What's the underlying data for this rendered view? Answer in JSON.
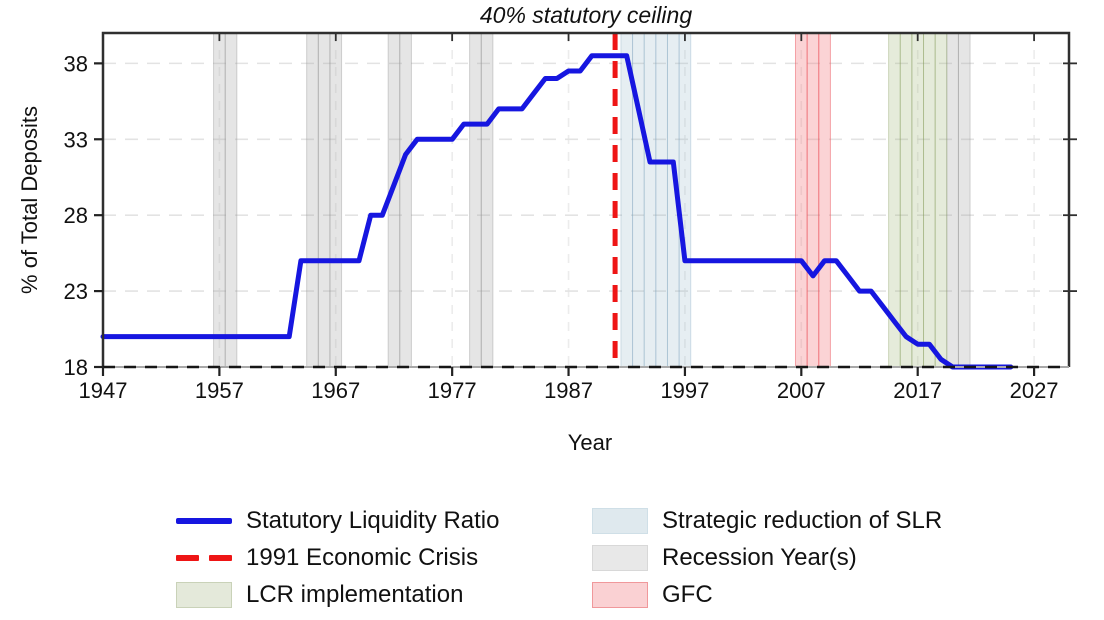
{
  "chart_data": {
    "type": "line",
    "title": "40% statutory ceiling",
    "xlabel": "Year",
    "ylabel": "% of Total Deposits",
    "xlim": [
      1947,
      2030
    ],
    "ylim": [
      18,
      40
    ],
    "x_ticks": [
      1947,
      1957,
      1967,
      1977,
      1987,
      1997,
      2007,
      2017,
      2027
    ],
    "y_ticks": [
      18,
      23,
      28,
      33,
      38
    ],
    "grid": true,
    "series": [
      {
        "name": "Statutory Liquidity Ratio",
        "color": "#1616e0",
        "points": [
          [
            1947,
            20
          ],
          [
            1948,
            20
          ],
          [
            1949,
            20
          ],
          [
            1950,
            20
          ],
          [
            1951,
            20
          ],
          [
            1952,
            20
          ],
          [
            1953,
            20
          ],
          [
            1954,
            20
          ],
          [
            1955,
            20
          ],
          [
            1956,
            20
          ],
          [
            1957,
            20
          ],
          [
            1958,
            20
          ],
          [
            1959,
            20
          ],
          [
            1960,
            20
          ],
          [
            1961,
            20
          ],
          [
            1962,
            20
          ],
          [
            1963,
            20
          ],
          [
            1964,
            25
          ],
          [
            1965,
            25
          ],
          [
            1966,
            25
          ],
          [
            1967,
            25
          ],
          [
            1968,
            25
          ],
          [
            1969,
            25
          ],
          [
            1970,
            28
          ],
          [
            1971,
            28
          ],
          [
            1972,
            30
          ],
          [
            1973,
            32
          ],
          [
            1974,
            33
          ],
          [
            1975,
            33
          ],
          [
            1976,
            33
          ],
          [
            1977,
            33
          ],
          [
            1978,
            34
          ],
          [
            1979,
            34
          ],
          [
            1980,
            34
          ],
          [
            1981,
            35
          ],
          [
            1982,
            35
          ],
          [
            1983,
            35
          ],
          [
            1984,
            36
          ],
          [
            1985,
            37
          ],
          [
            1986,
            37
          ],
          [
            1987,
            37.5
          ],
          [
            1988,
            37.5
          ],
          [
            1989,
            38.5
          ],
          [
            1990,
            38.5
          ],
          [
            1991,
            38.5
          ],
          [
            1992,
            38.5
          ],
          [
            1993,
            35
          ],
          [
            1994,
            31.5
          ],
          [
            1995,
            31.5
          ],
          [
            1996,
            31.5
          ],
          [
            1997,
            25
          ],
          [
            1998,
            25
          ],
          [
            1999,
            25
          ],
          [
            2000,
            25
          ],
          [
            2001,
            25
          ],
          [
            2002,
            25
          ],
          [
            2003,
            25
          ],
          [
            2004,
            25
          ],
          [
            2005,
            25
          ],
          [
            2006,
            25
          ],
          [
            2007,
            25
          ],
          [
            2008,
            24
          ],
          [
            2009,
            25
          ],
          [
            2010,
            25
          ],
          [
            2011,
            24
          ],
          [
            2012,
            23
          ],
          [
            2013,
            23
          ],
          [
            2014,
            22
          ],
          [
            2015,
            21
          ],
          [
            2016,
            20
          ],
          [
            2017,
            19.5
          ],
          [
            2018,
            19.5
          ],
          [
            2019,
            18.5
          ],
          [
            2020,
            18
          ],
          [
            2021,
            18
          ],
          [
            2022,
            18
          ],
          [
            2023,
            18
          ],
          [
            2024,
            18
          ],
          [
            2025,
            18
          ]
        ]
      }
    ],
    "reference_line": {
      "x": 1991,
      "label": "1991 Economic Crisis",
      "color": "#ee1515",
      "style": "dashed"
    },
    "bands": [
      {
        "name": "Strategic reduction of SLR",
        "years": [
          1992,
          1993,
          1994,
          1995,
          1996,
          1997
        ],
        "fill": "rgba(141,178,198,0.22)",
        "edge": "rgba(120,160,185,0.30)"
      },
      {
        "name": "Recession Year(s)",
        "years": [
          1957,
          1958,
          1965,
          1966,
          1967,
          1972,
          1973,
          1979,
          1980,
          2020,
          2021
        ],
        "fill": "rgba(170,170,170,0.30)",
        "edge": "rgba(145,145,145,0.38)"
      },
      {
        "name": "GFC",
        "years": [
          2007,
          2008,
          2009
        ],
        "fill": "rgba(242,118,124,0.32)",
        "edge": "rgba(235,88,95,0.50)"
      },
      {
        "name": "LCR implementation",
        "years": [
          2015,
          2016,
          2017,
          2018,
          2019
        ],
        "fill": "rgba(156,176,112,0.26)",
        "edge": "rgba(128,152,84,0.34)"
      }
    ]
  },
  "legend": {
    "columns": [
      {
        "items": [
          {
            "type": "line",
            "label": "Statutory Liquidity Ratio",
            "color": "#1616e0"
          },
          {
            "type": "dashed-line",
            "label": "1991 Economic Crisis",
            "color": "#ee1515"
          },
          {
            "type": "patch",
            "label": "LCR implementation",
            "fill": "#e4e9da",
            "edge": "#c9d2b8"
          }
        ]
      },
      {
        "items": [
          {
            "type": "patch",
            "label": "Strategic reduction of SLR",
            "fill": "#dfe9ee",
            "edge": "#cfdfe7"
          },
          {
            "type": "patch",
            "label": "Recession Year(s)",
            "fill": "#e8e8e8",
            "edge": "#d8d8d8"
          },
          {
            "type": "patch",
            "label": "GFC",
            "fill": "#fad1d3",
            "edge": "#f0989b"
          }
        ]
      }
    ]
  }
}
